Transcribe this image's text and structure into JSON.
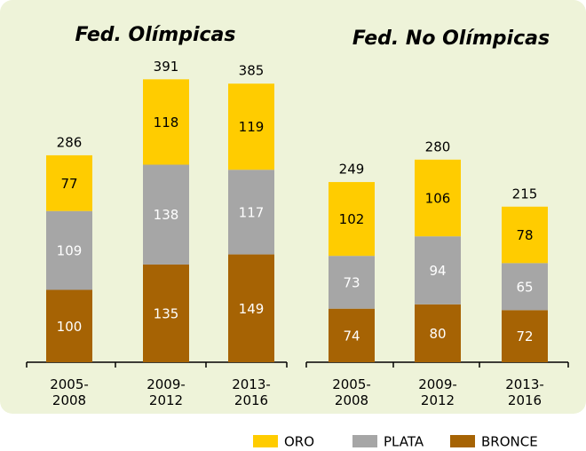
{
  "chart_data": [
    {
      "type": "bar",
      "stacked": true,
      "title": "Fed. Olímpicas",
      "categories": [
        "2005-2008",
        "2009-2012",
        "2013-2016"
      ],
      "series": [
        {
          "name": "BRONCE",
          "color": "#a66304",
          "values": [
            100,
            135,
            149
          ]
        },
        {
          "name": "PLATA",
          "color": "#a6a6a6",
          "values": [
            109,
            138,
            117
          ]
        },
        {
          "name": "ORO",
          "color": "#ffcc00",
          "values": [
            77,
            118,
            119
          ]
        }
      ],
      "totals": [
        286,
        391,
        385
      ]
    },
    {
      "type": "bar",
      "stacked": true,
      "title": "Fed. No Olímpicas",
      "categories": [
        "2005-2008",
        "2009-2012",
        "2013-2016"
      ],
      "series": [
        {
          "name": "BRONCE",
          "color": "#a66304",
          "values": [
            74,
            80,
            72
          ]
        },
        {
          "name": "PLATA",
          "color": "#a6a6a6",
          "values": [
            73,
            94,
            65
          ]
        },
        {
          "name": "ORO",
          "color": "#ffcc00",
          "values": [
            102,
            106,
            78
          ]
        }
      ],
      "totals": [
        249,
        280,
        215
      ]
    }
  ]
}
